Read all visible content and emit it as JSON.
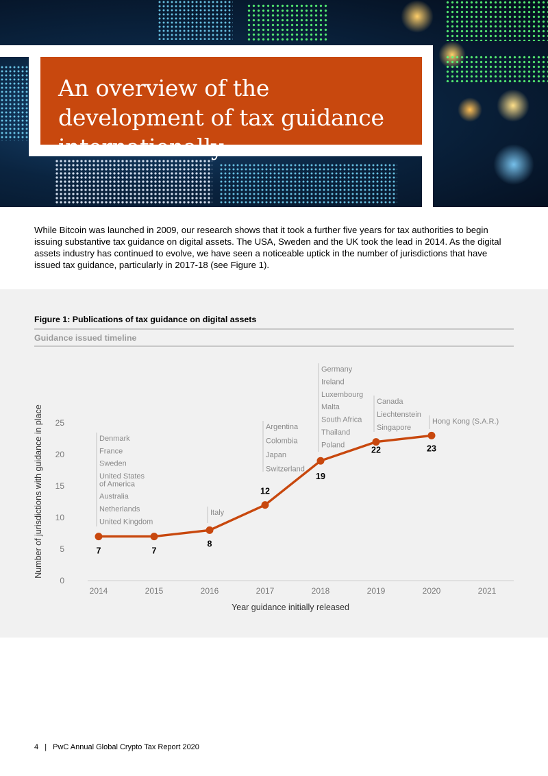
{
  "header": {
    "title": "An overview of the development of tax guidance internationally"
  },
  "intro": {
    "text": "While Bitcoin was launched in 2009, our research shows that it took a further five years for tax authorities to begin issuing substantive tax guidance on digital assets. The USA, Sweden and the UK took the lead in 2014. As the digital assets industry has continued to evolve, we have seen a noticeable uptick in the number of jurisdictions that have issued tax guidance, particularly in 2017-18 (see Figure 1)."
  },
  "figure": {
    "caption": "Figure 1: Publications of tax guidance on digital assets",
    "subtitle": "Guidance issued timeline"
  },
  "chart_data": {
    "type": "line",
    "x": [
      "2014",
      "2015",
      "2016",
      "2017",
      "2018",
      "2019",
      "2020",
      "2021"
    ],
    "series": [
      {
        "values": [
          7,
          7,
          8,
          12,
          19,
          22,
          23,
          null
        ],
        "color": "#c8480e"
      }
    ],
    "data_labels": [
      "7",
      "7",
      "8",
      "12",
      "19",
      "22",
      "23"
    ],
    "xlabel": "Year guidance initially released",
    "ylabel": "Number of  jurisdictions with guidance in place",
    "ylim": [
      0,
      25
    ],
    "yticks": [
      "0",
      "5",
      "10",
      "15",
      "20",
      "25"
    ],
    "grid": false,
    "annotations": [
      {
        "year": "2014",
        "countries": [
          "Denmark",
          "France",
          "Sweden",
          "United States\nof America",
          "Australia",
          "Netherlands",
          "United Kingdom"
        ]
      },
      {
        "year": "2016",
        "countries": [
          "Italy"
        ]
      },
      {
        "year": "2017",
        "countries": [
          "Argentina",
          "Colombia",
          "Japan",
          "Switzerland"
        ]
      },
      {
        "year": "2018",
        "countries": [
          "Germany",
          "Ireland",
          "Luxembourg",
          "Malta",
          "South Africa",
          "Thailand",
          "Poland"
        ]
      },
      {
        "year": "2019",
        "countries": [
          "Canada",
          "Liechtenstein",
          "Singapore"
        ]
      },
      {
        "year": "2020",
        "countries": [
          "Hong Kong (S.A.R.)"
        ]
      }
    ]
  },
  "footer": {
    "page_number": "4",
    "separator": "|",
    "report_title": "PwC Annual Global Crypto Tax Report 2020"
  }
}
